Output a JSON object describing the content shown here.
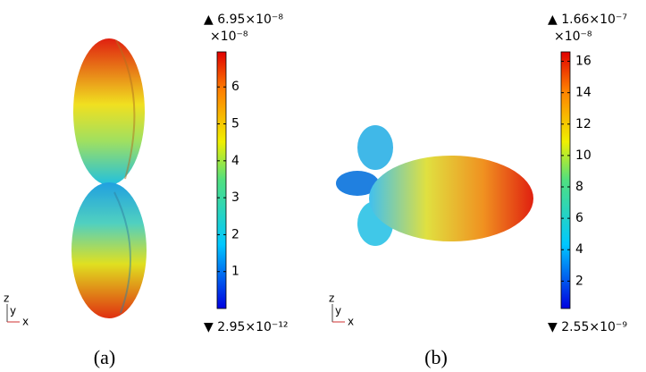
{
  "panels": [
    {
      "caption": "(a)",
      "max_label": "▲ 6.95×10⁻⁸",
      "unit_label": "×10⁻⁸",
      "min_label": "▼ 2.95×10⁻¹²",
      "colorbar": {
        "range": [
          0,
          6.95
        ],
        "ticks": [
          1,
          2,
          3,
          4,
          5,
          6
        ]
      },
      "axes": {
        "z": "z",
        "y": "y",
        "x": "x"
      }
    },
    {
      "caption": "(b)",
      "max_label": "▲ 1.66×10⁻⁷",
      "unit_label": "×10⁻⁸",
      "min_label": "▼ 2.55×10⁻⁹",
      "colorbar": {
        "range": [
          0.255,
          16.6
        ],
        "ticks": [
          2,
          4,
          6,
          8,
          10,
          12,
          14,
          16
        ]
      },
      "axes": {
        "z": "z",
        "y": "y",
        "x": "x"
      }
    }
  ]
}
